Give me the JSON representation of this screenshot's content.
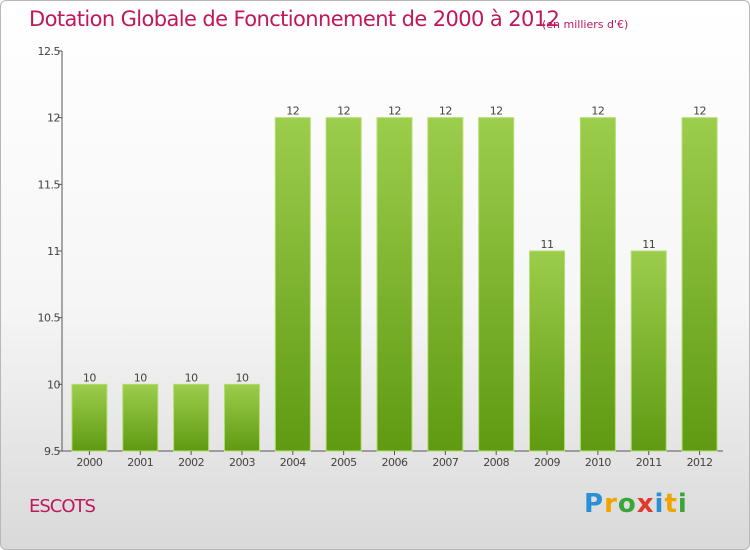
{
  "chart_data": {
    "type": "bar",
    "title": "Dotation Globale de Fonctionnement de 2000 à 2012",
    "subtitle": "(en milliers d'€)",
    "xlabel": "",
    "ylabel": "",
    "categories": [
      "2000",
      "2001",
      "2002",
      "2003",
      "2004",
      "2005",
      "2006",
      "2007",
      "2008",
      "2009",
      "2010",
      "2011",
      "2012"
    ],
    "values": [
      10,
      10,
      10,
      10,
      12,
      12,
      12,
      12,
      12,
      11,
      12,
      11,
      12
    ],
    "data_labels": [
      "10",
      "10",
      "10",
      "10",
      "12",
      "12",
      "12",
      "12",
      "12",
      "11",
      "12",
      "11",
      "12"
    ],
    "ylim": [
      9.5,
      12.5
    ],
    "yticks": [
      9.5,
      10,
      10.5,
      11,
      11.5,
      12,
      12.5
    ],
    "ytick_labels": [
      "9.5",
      "10",
      "10.5",
      "11",
      "11.5",
      "12",
      "12.5"
    ],
    "grid": false,
    "legend": "none",
    "bar_color_top": "#9ccd4c",
    "bar_color_bottom": "#5f9a12"
  },
  "footer": {
    "commune": "ESCOTS",
    "logo_letters": [
      {
        "ch": "P",
        "color": "#2b8fd6"
      },
      {
        "ch": "r",
        "color": "#f0a400"
      },
      {
        "ch": "o",
        "color": "#3aa63a"
      },
      {
        "ch": "x",
        "color": "#e03a2a"
      },
      {
        "ch": "i",
        "color": "#2b8fd6"
      },
      {
        "ch": "t",
        "color": "#f0a400"
      },
      {
        "ch": "i",
        "color": "#3aa63a"
      }
    ]
  },
  "colors": {
    "title": "#c0175d",
    "axis": "#555555",
    "label": "#444444"
  }
}
